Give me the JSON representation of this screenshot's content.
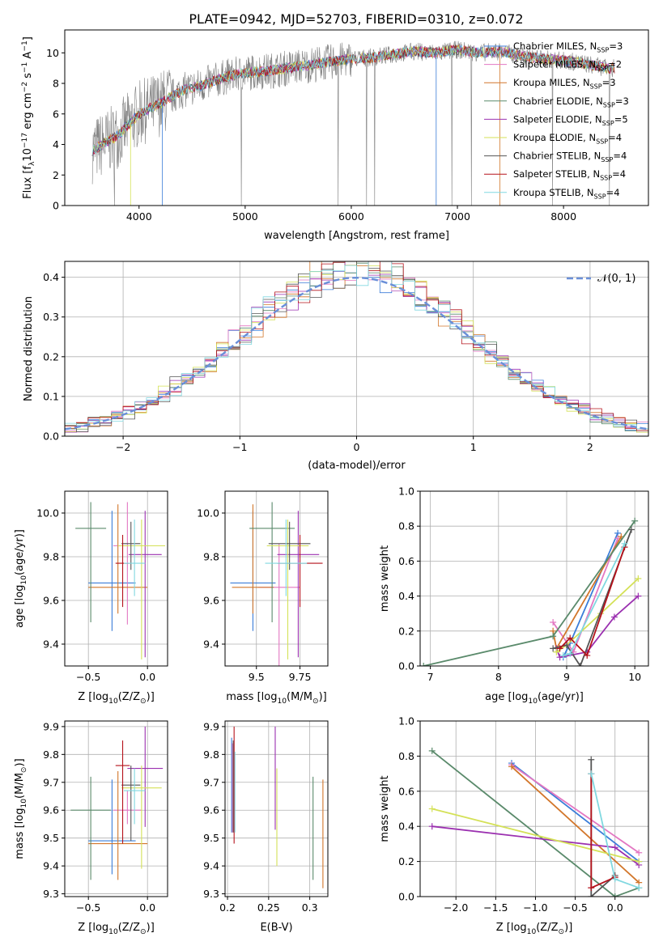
{
  "figure": {
    "title": "PLATE=0942, MJD=52703, FIBERID=0310, z=0.072"
  },
  "colors": {
    "data": "#808080",
    "series": [
      "#3b7dd8",
      "#e377c2",
      "#d2762a",
      "#5a8a6b",
      "#9b30b0",
      "#d4e157",
      "#555555",
      "#b5121b",
      "#80d8e0"
    ],
    "gaussian": "#6a8fd8"
  },
  "series_names": [
    "Chabrier MILES, N_SSP=3",
    "Salpeter MILES, N_SSP=2",
    "Kroupa MILES, N_SSP=3",
    "Chabrier ELODIE, N_SSP=3",
    "Salpeter ELODIE, N_SSP=5",
    "Kroupa ELODIE, N_SSP=4",
    "Chabrier STELIB, N_SSP=4",
    "Salpeter STELIB, N_SSP=4",
    "Kroupa STELIB, N_SSP=4"
  ],
  "chart_data": [
    {
      "id": "spectrum",
      "type": "line",
      "xlabel": "wavelength [Angstrom, rest frame]",
      "ylabel": "Flux [f_λ10^-17 erg cm^-2 s^-1 A^-1]",
      "xlim": [
        3300,
        8800
      ],
      "ylim": [
        0,
        11.5
      ],
      "xticks": [
        4000,
        5000,
        6000,
        7000,
        8000
      ],
      "yticks": [
        0,
        2,
        4,
        6,
        8,
        10
      ],
      "grid": false,
      "legend": "right",
      "model_x": [
        3560,
        3800,
        4000,
        4200,
        4400,
        4600,
        4800,
        5000,
        5200,
        5400,
        5600,
        5800,
        6000,
        6200,
        6400,
        6600,
        6800,
        7000,
        7200,
        7400,
        7600,
        7800,
        8000,
        8200,
        8400
      ],
      "model_y": [
        3.6,
        4.6,
        6.0,
        6.7,
        7.5,
        7.9,
        8.4,
        8.7,
        8.8,
        9.0,
        9.2,
        9.4,
        9.6,
        9.7,
        9.9,
        10.1,
        10.0,
        10.2,
        10.0,
        10.1,
        9.8,
        9.6,
        9.5,
        9.3,
        9.0
      ]
    },
    {
      "id": "residuals",
      "type": "histogram",
      "xlabel": "(data-model)/error",
      "ylabel": "Normed distribution",
      "xlim": [
        -2.5,
        2.5
      ],
      "ylim": [
        0,
        0.44
      ],
      "xticks": [
        -2,
        -1,
        0,
        1,
        2
      ],
      "yticks": [
        0.0,
        0.1,
        0.2,
        0.3,
        0.4
      ],
      "grid": true,
      "legend": "top-right",
      "gaussian_label": "N(0,1)"
    },
    {
      "id": "age_vs_Z",
      "type": "scatter",
      "xlabel": "Z [log10(Z/Z⊙)]",
      "ylabel": "age  [log10(age/yr)]",
      "xlim": [
        -0.7,
        0.17
      ],
      "ylim": [
        9.3,
        10.1
      ],
      "xticks": [
        -0.5,
        0.0
      ],
      "yticks": [
        9.4,
        9.6,
        9.8,
        10.0
      ],
      "grid": true,
      "points": [
        {
          "x": -0.3,
          "y": 9.68,
          "dx": 0.2,
          "dy1": 0.22,
          "dy2": 0.33
        },
        {
          "x": -0.17,
          "y": 9.85,
          "dx": 0.12,
          "dy1": 0.36,
          "dy2": 0.2
        },
        {
          "x": -0.25,
          "y": 9.66,
          "dx": 0.25,
          "dy1": 0.12,
          "dy2": 0.38
        },
        {
          "x": -0.48,
          "y": 9.93,
          "dx": 0.13,
          "dy1": 0.43,
          "dy2": 0.12
        },
        {
          "x": -0.02,
          "y": 9.81,
          "dx": 0.14,
          "dy1": 0.47,
          "dy2": 0.2
        },
        {
          "x": -0.05,
          "y": 9.85,
          "dx": 0.2,
          "dy1": 0.52,
          "dy2": 0.12
        },
        {
          "x": -0.14,
          "y": 9.86,
          "dx": 0.08,
          "dy1": 0.12,
          "dy2": 0.1
        },
        {
          "x": -0.21,
          "y": 9.77,
          "dx": 0.06,
          "dy1": 0.2,
          "dy2": 0.13
        },
        {
          "x": -0.11,
          "y": 9.77,
          "dx": 0.09,
          "dy1": 0.15,
          "dy2": 0.2
        }
      ]
    },
    {
      "id": "age_vs_mass",
      "type": "scatter",
      "xlabel": "mass [log10(M/M⊙)]",
      "ylabel": "",
      "xlim": [
        9.32,
        9.91
      ],
      "ylim": [
        9.3,
        10.1
      ],
      "xticks": [
        9.5,
        9.75
      ],
      "yticks": [
        9.4,
        9.6,
        9.8,
        10.0
      ],
      "grid": true,
      "points": [
        {
          "x": 9.48,
          "y": 9.68,
          "dx": 0.13,
          "dy1": 0.22,
          "dy2": 0.33
        },
        {
          "x": 9.63,
          "y": 9.66,
          "dx": 0.12,
          "dy1": 0.36,
          "dy2": 0.2
        },
        {
          "x": 9.48,
          "y": 9.66,
          "dx": 0.12,
          "dy1": 0.12,
          "dy2": 0.38
        },
        {
          "x": 9.59,
          "y": 9.93,
          "dx": 0.13,
          "dy1": 0.43,
          "dy2": 0.12
        },
        {
          "x": 9.74,
          "y": 9.81,
          "dx": 0.12,
          "dy1": 0.47,
          "dy2": 0.2
        },
        {
          "x": 9.68,
          "y": 9.85,
          "dx": 0.12,
          "dy1": 0.52,
          "dy2": 0.12
        },
        {
          "x": 9.69,
          "y": 9.86,
          "dx": 0.12,
          "dy1": 0.12,
          "dy2": 0.1
        },
        {
          "x": 9.75,
          "y": 9.77,
          "dx": 0.13,
          "dy1": 0.2,
          "dy2": 0.13
        },
        {
          "x": 9.67,
          "y": 9.77,
          "dx": 0.12,
          "dy1": 0.15,
          "dy2": 0.2
        }
      ]
    },
    {
      "id": "weight_vs_age",
      "type": "line",
      "xlabel": "age  [log10(age/yr)]",
      "ylabel": "mass weight",
      "xlim": [
        6.85,
        10.2
      ],
      "ylim": [
        0,
        1.0
      ],
      "xticks": [
        7,
        8,
        9,
        10
      ],
      "yticks": [
        0.0,
        0.2,
        0.4,
        0.6,
        0.8,
        1.0
      ],
      "grid": true,
      "series": [
        {
          "x": [
            8.95,
            9.05,
            9.75
          ],
          "y": [
            0.05,
            0.13,
            0.76
          ]
        },
        {
          "x": [
            8.8,
            9.1,
            9.75
          ],
          "y": [
            0.25,
            0.08,
            0.73
          ]
        },
        {
          "x": [
            8.8,
            8.85,
            9.8
          ],
          "y": [
            0.2,
            0.1,
            0.74
          ]
        },
        {
          "x": [
            6.9,
            8.8,
            10.0
          ],
          "y": [
            0.0,
            0.17,
            0.83
          ]
        },
        {
          "x": [
            8.85,
            8.9,
            9.3,
            9.7,
            10.05
          ],
          "y": [
            0.1,
            0.05,
            0.08,
            0.28,
            0.4
          ]
        },
        {
          "x": [
            8.85,
            9.0,
            9.5,
            10.05
          ],
          "y": [
            0.08,
            0.12,
            0.3,
            0.5
          ]
        },
        {
          "x": [
            8.8,
            9.0,
            9.2,
            9.95
          ],
          "y": [
            0.1,
            0.12,
            0.0,
            0.78
          ]
        },
        {
          "x": [
            8.9,
            9.05,
            9.3,
            9.85
          ],
          "y": [
            0.1,
            0.16,
            0.06,
            0.68
          ]
        },
        {
          "x": [
            8.95,
            9.05,
            9.85
          ],
          "y": [
            0.06,
            0.07,
            0.7
          ]
        }
      ]
    },
    {
      "id": "mass_vs_Z",
      "type": "scatter",
      "xlabel": "Z [log10(Z/Z⊙)]",
      "ylabel": "mass [log10(M/M⊙)]",
      "xlim": [
        -0.7,
        0.17
      ],
      "ylim": [
        9.29,
        9.92
      ],
      "xticks": [
        -0.5,
        0.0
      ],
      "yticks": [
        9.3,
        9.4,
        9.5,
        9.6,
        9.7,
        9.8,
        9.9
      ],
      "grid": true,
      "points": [
        {
          "x": -0.3,
          "y": 9.49,
          "dx": 0.2,
          "dy1": 0.12,
          "dy2": 0.22
        },
        {
          "x": -0.17,
          "y": 9.6,
          "dx": 0.12,
          "dy1": 0.05,
          "dy2": 0.07
        },
        {
          "x": -0.25,
          "y": 9.48,
          "dx": 0.25,
          "dy1": 0.13,
          "dy2": 0.26
        },
        {
          "x": -0.48,
          "y": 9.6,
          "dx": 0.17,
          "dy1": 0.25,
          "dy2": 0.12
        },
        {
          "x": -0.02,
          "y": 9.75,
          "dx": 0.15,
          "dy1": 0.21,
          "dy2": 0.15
        },
        {
          "x": -0.05,
          "y": 9.68,
          "dx": 0.17,
          "dy1": 0.29,
          "dy2": 0.08
        },
        {
          "x": -0.14,
          "y": 9.69,
          "dx": 0.08,
          "dy1": 0.2,
          "dy2": 0.07
        },
        {
          "x": -0.21,
          "y": 9.76,
          "dx": 0.06,
          "dy1": 0.28,
          "dy2": 0.09
        },
        {
          "x": -0.11,
          "y": 9.67,
          "dx": 0.09,
          "dy1": 0.12,
          "dy2": 0.08
        }
      ]
    },
    {
      "id": "mass_vs_EBV",
      "type": "scatter",
      "xlabel": "E(B-V)",
      "ylabel": "",
      "xlim": [
        0.197,
        0.322
      ],
      "ylim": [
        9.29,
        9.92
      ],
      "xticks": [
        0.2,
        0.25,
        0.3
      ],
      "yticks": [
        9.3,
        9.4,
        9.5,
        9.6,
        9.7,
        9.8,
        9.9
      ],
      "grid": true,
      "points": [
        {
          "x": 0.205,
          "y": 9.66,
          "dy1": 0.14,
          "dy2": 0.2
        },
        {
          "x": 0.206,
          "y": 9.62,
          "dy1": 0.1,
          "dy2": 0.22
        },
        {
          "x": 0.316,
          "y": 9.5,
          "dy1": 0.18,
          "dy2": 0.21
        },
        {
          "x": 0.304,
          "y": 9.53,
          "dy1": 0.18,
          "dy2": 0.19
        },
        {
          "x": 0.258,
          "y": 9.72,
          "dy1": 0.19,
          "dy2": 0.18
        },
        {
          "x": 0.26,
          "y": 9.57,
          "dy1": 0.17,
          "dy2": 0.18
        },
        {
          "x": 0.207,
          "y": 9.68,
          "dy1": 0.16,
          "dy2": 0.17
        },
        {
          "x": 0.208,
          "y": 9.69,
          "dy1": 0.21,
          "dy2": 0.21
        },
        {
          "x": 0.209,
          "y": 9.66,
          "dy1": 0.14,
          "dy2": 0.15
        }
      ]
    },
    {
      "id": "weight_vs_Z",
      "type": "line",
      "xlabel": "Z [log10(Z/Z⊙)]",
      "ylabel": "mass weight",
      "xlim": [
        -2.45,
        0.42
      ],
      "ylim": [
        0,
        1.0
      ],
      "xticks": [
        -2.0,
        -1.5,
        -1.0,
        -0.5,
        0.0
      ],
      "yticks": [
        0.0,
        0.2,
        0.4,
        0.6,
        0.8,
        1.0
      ],
      "grid": true,
      "series": [
        {
          "x": [
            -1.3,
            0.3
          ],
          "y": [
            0.76,
            0.2
          ]
        },
        {
          "x": [
            -1.3,
            0.3
          ],
          "y": [
            0.75,
            0.25
          ]
        },
        {
          "x": [
            -1.3,
            0.3
          ],
          "y": [
            0.74,
            0.08
          ]
        },
        {
          "x": [
            -2.3,
            0.0,
            0.3
          ],
          "y": [
            0.83,
            0.0,
            0.05
          ]
        },
        {
          "x": [
            -2.3,
            0.0,
            0.3
          ],
          "y": [
            0.4,
            0.28,
            0.18
          ]
        },
        {
          "x": [
            -2.3,
            0.3
          ],
          "y": [
            0.5,
            0.2
          ]
        },
        {
          "x": [
            -0.3,
            -0.3,
            0.0
          ],
          "y": [
            0.78,
            0.0,
            0.12
          ]
        },
        {
          "x": [
            -0.3,
            -0.3,
            0.0
          ],
          "y": [
            0.7,
            0.05,
            0.11
          ]
        },
        {
          "x": [
            -0.3,
            0.0,
            0.3
          ],
          "y": [
            0.7,
            0.1,
            0.05
          ]
        }
      ]
    }
  ]
}
